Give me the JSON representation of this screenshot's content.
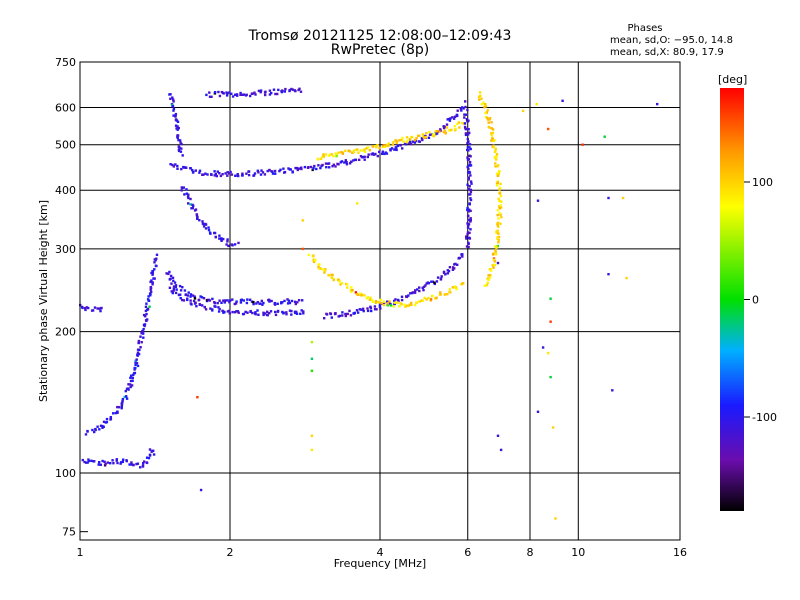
{
  "chart_data": {
    "type": "scatter",
    "title": "Tromsø 20121125 12:08:00–12:09:43",
    "subtitle": "RwPretec (8p)",
    "xlabel": "Frequency [MHz]",
    "ylabel": "Stationary phase Virtual Height [km]",
    "x_scale": "log",
    "y_scale": "log",
    "xlim": [
      1,
      16
    ],
    "ylim": [
      72,
      750
    ],
    "x_ticks": [
      1,
      2,
      4,
      6,
      8,
      10,
      16
    ],
    "y_ticks": [
      75,
      100,
      200,
      300,
      400,
      500,
      600,
      750
    ],
    "grid": true,
    "stats": {
      "title": "Phases",
      "line_o": "mean, sd,O: −95.0, 14.8",
      "line_x": "mean, sd,X:  80.9, 17.9"
    },
    "colorbar": {
      "label": "[deg]",
      "range": [
        -180,
        180
      ],
      "ticks": [
        100,
        0,
        -100
      ],
      "colormap": "rainbow: black-purple-blue-cyan-green-yellow-orange-red"
    },
    "traces": [
      {
        "points": [
          [
            1.01,
            106
          ],
          [
            1.05,
            106
          ],
          [
            1.1,
            105
          ],
          [
            1.15,
            105
          ],
          [
            1.2,
            106
          ],
          [
            1.25,
            105
          ],
          [
            1.3,
            104
          ],
          [
            1.35,
            104
          ],
          [
            1.37,
            108
          ],
          [
            1.4,
            112
          ],
          [
            1.42,
            110
          ]
        ],
        "phase": -110
      },
      {
        "points": [
          [
            1.03,
            122
          ],
          [
            1.08,
            124
          ],
          [
            1.13,
            128
          ],
          [
            1.18,
            134
          ],
          [
            1.22,
            142
          ],
          [
            1.26,
            152
          ],
          [
            1.29,
            166
          ],
          [
            1.31,
            180
          ],
          [
            1.33,
            196
          ],
          [
            1.35,
            212
          ],
          [
            1.37,
            232
          ],
          [
            1.39,
            252
          ],
          [
            1.41,
            272
          ],
          [
            1.43,
            292
          ]
        ],
        "phase": -105
      },
      {
        "points": [
          [
            1.0,
            226
          ],
          [
            1.04,
            224
          ],
          [
            1.08,
            222
          ],
          [
            1.12,
            222
          ]
        ],
        "phase": -110
      },
      {
        "points": [
          [
            1.52,
            250
          ],
          [
            1.56,
            240
          ],
          [
            1.62,
            234
          ],
          [
            1.7,
            229
          ],
          [
            1.8,
            225
          ],
          [
            1.95,
            222
          ],
          [
            2.1,
            220
          ],
          [
            2.3,
            219
          ],
          [
            2.6,
            219
          ],
          [
            2.85,
            221
          ]
        ],
        "phase": -110
      },
      {
        "points": [
          [
            1.5,
            268
          ],
          [
            1.55,
            252
          ],
          [
            1.62,
            242
          ],
          [
            1.7,
            236
          ],
          [
            1.8,
            233
          ],
          [
            1.95,
            232
          ],
          [
            2.2,
            231
          ],
          [
            2.5,
            231
          ],
          [
            2.8,
            232
          ]
        ],
        "phase": -108
      },
      {
        "points": [
          [
            3.1,
            216
          ],
          [
            3.4,
            218
          ],
          [
            3.7,
            222
          ],
          [
            4.0,
            226
          ],
          [
            4.3,
            232
          ],
          [
            4.6,
            240
          ],
          [
            4.9,
            248
          ],
          [
            5.2,
            258
          ],
          [
            5.5,
            270
          ],
          [
            5.75,
            283
          ],
          [
            5.9,
            295
          ]
        ],
        "phase": -112
      },
      {
        "points": [
          [
            2.9,
            290
          ],
          [
            3.05,
            275
          ],
          [
            3.2,
            262
          ],
          [
            3.4,
            250
          ],
          [
            3.6,
            241
          ],
          [
            3.85,
            234
          ],
          [
            4.1,
            230
          ],
          [
            4.4,
            228
          ],
          [
            4.7,
            230
          ],
          [
            5.0,
            234
          ],
          [
            5.3,
            240
          ],
          [
            5.6,
            246
          ],
          [
            5.9,
            252
          ]
        ],
        "phase": 95
      },
      {
        "points": [
          [
            1.52,
            455
          ],
          [
            1.6,
            445
          ],
          [
            1.7,
            438
          ],
          [
            1.85,
            434
          ],
          [
            2.0,
            433
          ],
          [
            2.2,
            434
          ],
          [
            2.45,
            438
          ],
          [
            2.7,
            442
          ],
          [
            3.0,
            448
          ],
          [
            3.3,
            456
          ],
          [
            3.6,
            465
          ],
          [
            3.9,
            475
          ],
          [
            4.2,
            486
          ],
          [
            4.5,
            498
          ],
          [
            4.8,
            512
          ],
          [
            5.1,
            528
          ],
          [
            5.4,
            548
          ],
          [
            5.6,
            568
          ],
          [
            5.8,
            592
          ],
          [
            5.95,
            615
          ]
        ],
        "phase": -112
      },
      {
        "points": [
          [
            3.0,
            470
          ],
          [
            3.3,
            478
          ],
          [
            3.6,
            486
          ],
          [
            3.9,
            494
          ],
          [
            4.2,
            503
          ],
          [
            4.5,
            512
          ],
          [
            4.8,
            520
          ],
          [
            5.1,
            528
          ],
          [
            5.4,
            535
          ],
          [
            5.7,
            545
          ],
          [
            5.9,
            558
          ]
        ],
        "phase": 98
      },
      {
        "points": [
          [
            1.6,
            410
          ],
          [
            1.7,
            360
          ],
          [
            1.8,
            330
          ],
          [
            1.9,
            315
          ],
          [
            2.0,
            308
          ],
          [
            2.08,
            305
          ]
        ],
        "phase": -108
      },
      {
        "points": [
          [
            1.52,
            640
          ],
          [
            1.55,
            580
          ],
          [
            1.58,
            520
          ],
          [
            1.6,
            470
          ]
        ],
        "phase": -110
      },
      {
        "points": [
          [
            1.8,
            640
          ],
          [
            2.0,
            640
          ],
          [
            2.2,
            642
          ],
          [
            2.5,
            648
          ],
          [
            2.8,
            652
          ]
        ],
        "phase": -110
      },
      {
        "points": [
          [
            6.3,
            640
          ],
          [
            6.5,
            600
          ],
          [
            6.7,
            540
          ],
          [
            6.85,
            470
          ],
          [
            6.95,
            400
          ],
          [
            6.95,
            350
          ],
          [
            6.85,
            300
          ],
          [
            6.7,
            270
          ],
          [
            6.5,
            250
          ]
        ],
        "phase": 95
      },
      {
        "points": [
          [
            5.95,
            590
          ],
          [
            6.0,
            520
          ],
          [
            6.05,
            460
          ],
          [
            6.05,
            400
          ],
          [
            6.03,
            340
          ],
          [
            6.0,
            300
          ]
        ],
        "phase": -112
      }
    ],
    "scatter_points": [
      {
        "x": 1.75,
        "y": 92,
        "phase": -110
      },
      {
        "x": 1.72,
        "y": 145,
        "phase": 160
      },
      {
        "x": 2.92,
        "y": 190,
        "phase": 55
      },
      {
        "x": 2.92,
        "y": 175,
        "phase": -20
      },
      {
        "x": 2.92,
        "y": 165,
        "phase": 10
      },
      {
        "x": 2.92,
        "y": 120,
        "phase": 100
      },
      {
        "x": 2.92,
        "y": 112,
        "phase": 90
      },
      {
        "x": 2.8,
        "y": 345,
        "phase": 100
      },
      {
        "x": 2.8,
        "y": 300,
        "phase": 150
      },
      {
        "x": 3.6,
        "y": 375,
        "phase": 90
      },
      {
        "x": 6.9,
        "y": 280,
        "phase": -110
      },
      {
        "x": 6.9,
        "y": 120,
        "phase": -110
      },
      {
        "x": 7.0,
        "y": 112,
        "phase": -110
      },
      {
        "x": 8.3,
        "y": 135,
        "phase": -110
      },
      {
        "x": 8.3,
        "y": 380,
        "phase": -110
      },
      {
        "x": 8.5,
        "y": 185,
        "phase": -110
      },
      {
        "x": 8.7,
        "y": 540,
        "phase": 150
      },
      {
        "x": 8.8,
        "y": 235,
        "phase": -10
      },
      {
        "x": 8.8,
        "y": 210,
        "phase": 160
      },
      {
        "x": 8.8,
        "y": 160,
        "phase": -10
      },
      {
        "x": 8.7,
        "y": 180,
        "phase": 90
      },
      {
        "x": 8.9,
        "y": 125,
        "phase": 100
      },
      {
        "x": 9.0,
        "y": 80,
        "phase": 100
      },
      {
        "x": 9.3,
        "y": 620,
        "phase": -110
      },
      {
        "x": 10.2,
        "y": 500,
        "phase": 160
      },
      {
        "x": 11.3,
        "y": 520,
        "phase": -10
      },
      {
        "x": 11.5,
        "y": 385,
        "phase": -110
      },
      {
        "x": 11.5,
        "y": 265,
        "phase": -110
      },
      {
        "x": 11.7,
        "y": 150,
        "phase": -110
      },
      {
        "x": 12.3,
        "y": 385,
        "phase": 100
      },
      {
        "x": 12.5,
        "y": 260,
        "phase": 100
      },
      {
        "x": 14.4,
        "y": 610,
        "phase": -110
      },
      {
        "x": 8.25,
        "y": 610,
        "phase": 90
      },
      {
        "x": 7.75,
        "y": 590,
        "phase": 100
      }
    ]
  }
}
